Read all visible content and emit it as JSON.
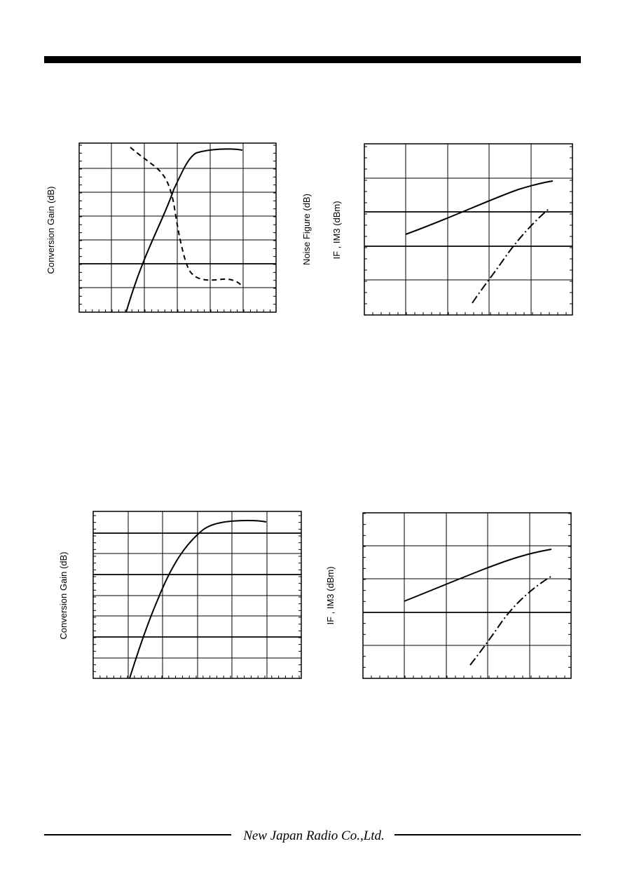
{
  "charts": [
    {
      "y_label": "Conversion Gain (dB)"
    },
    {
      "y_labels": [
        "Noise Figure (dB)",
        "IF , IM3 (dBm)"
      ]
    },
    {
      "y_label": "Conversion Gain (dB)"
    },
    {
      "y_label": "IF , IM3 (dBm)"
    }
  ],
  "footer": {
    "company": "New Japan Radio Co.,Ltd."
  }
}
